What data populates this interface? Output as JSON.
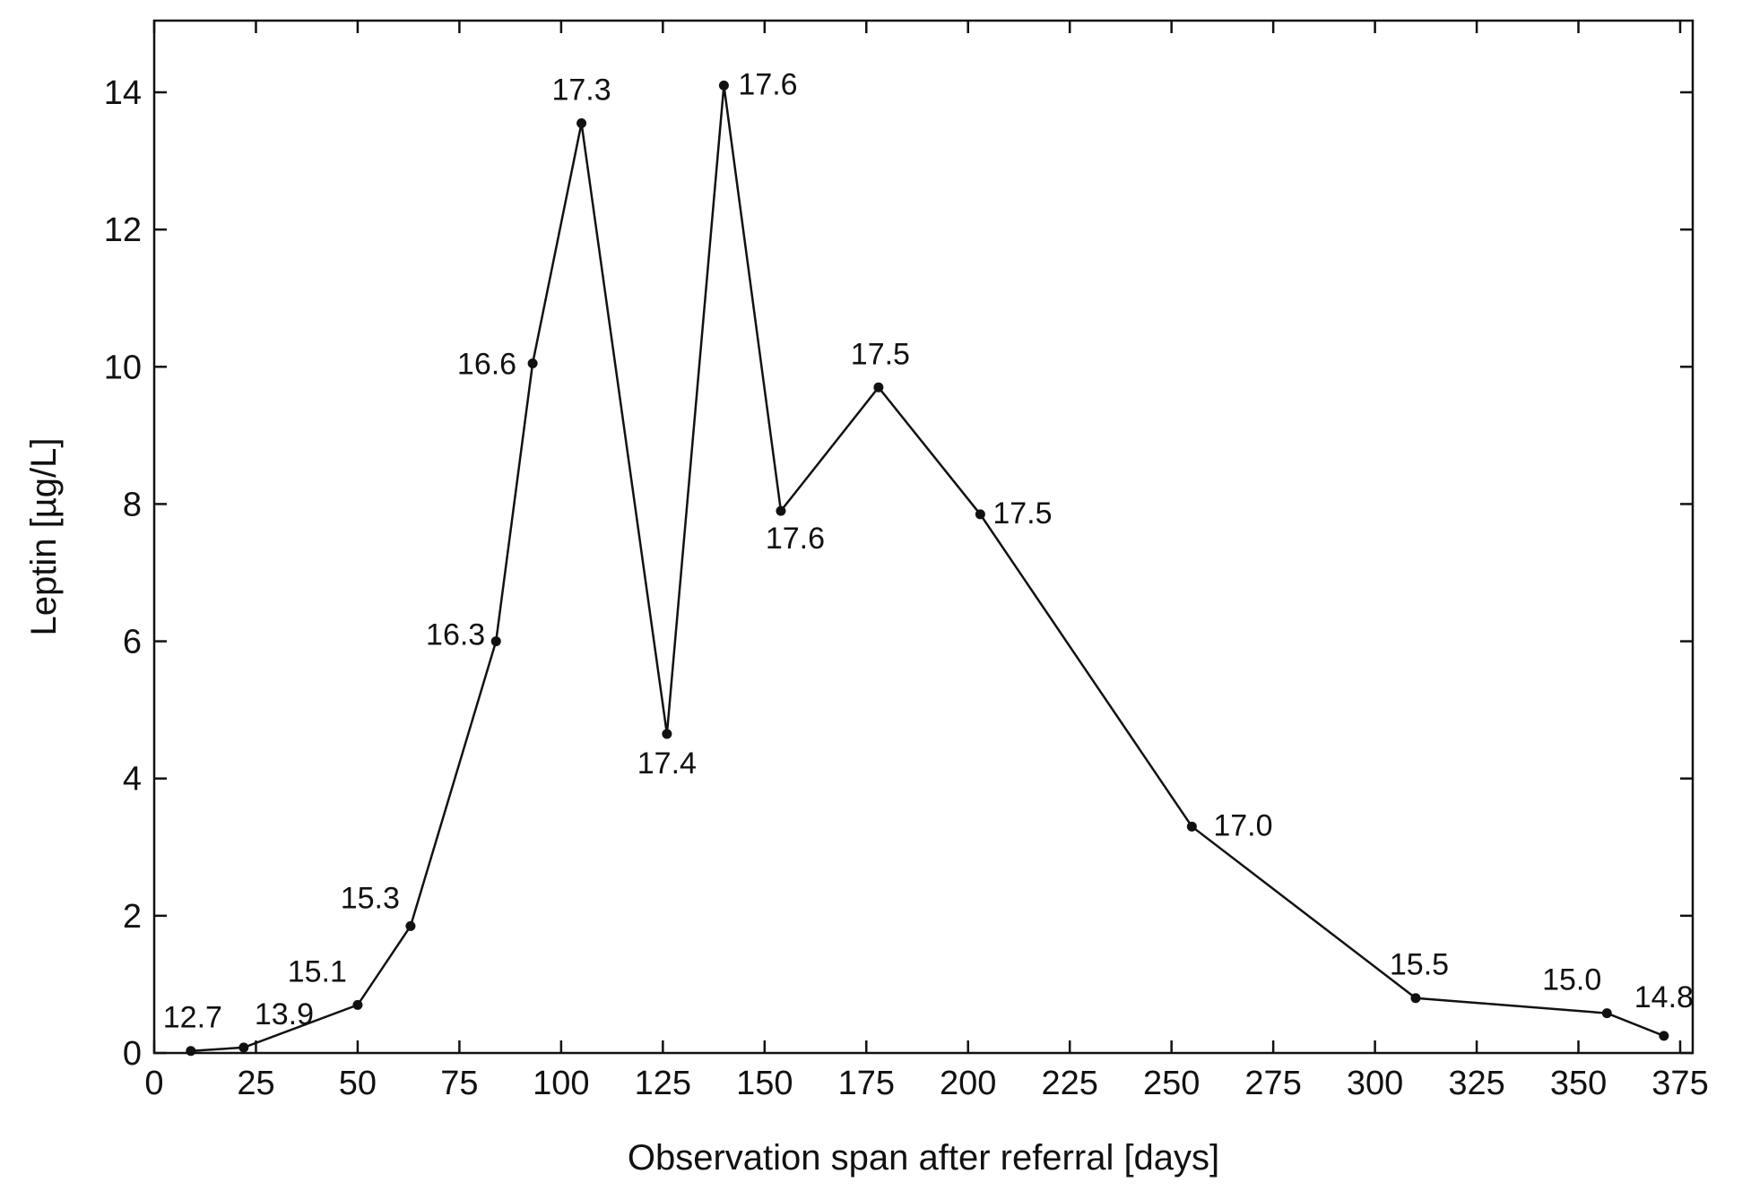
{
  "chart_data": {
    "type": "line",
    "title": "",
    "xlabel": "Observation span after referral [days]",
    "ylabel": "Leptin [µg/L]",
    "xlim": [
      0,
      375
    ],
    "ylim": [
      0,
      15
    ],
    "xticks": [
      0,
      25,
      50,
      75,
      100,
      125,
      150,
      175,
      200,
      225,
      250,
      275,
      300,
      325,
      350,
      375
    ],
    "yticks": [
      0,
      2,
      4,
      6,
      8,
      10,
      12,
      14
    ],
    "grid": false,
    "legend": "none",
    "series": [
      {
        "points": [
          {
            "x": 9,
            "y": 0.03,
            "label": "12.7"
          },
          {
            "x": 22,
            "y": 0.08,
            "label": "13.9"
          },
          {
            "x": 50,
            "y": 0.7,
            "label": "15.1"
          },
          {
            "x": 63,
            "y": 1.85,
            "label": "15.3"
          },
          {
            "x": 84,
            "y": 6.0,
            "label": "16.3"
          },
          {
            "x": 93,
            "y": 10.05,
            "label": "16.6"
          },
          {
            "x": 105,
            "y": 13.55,
            "label": "17.3"
          },
          {
            "x": 126,
            "y": 4.65,
            "label": "17.4"
          },
          {
            "x": 140,
            "y": 14.1,
            "label": "17.6"
          },
          {
            "x": 154,
            "y": 7.9,
            "label": "17.6"
          },
          {
            "x": 178,
            "y": 9.7,
            "label": "17.5"
          },
          {
            "x": 203,
            "y": 7.85,
            "label": "17.5"
          },
          {
            "x": 255,
            "y": 3.3,
            "label": "17.0"
          },
          {
            "x": 310,
            "y": 0.8,
            "label": "15.5"
          },
          {
            "x": 357,
            "y": 0.58,
            "label": "15.0"
          },
          {
            "x": 371,
            "y": 0.25,
            "label": "14.8"
          }
        ]
      }
    ]
  }
}
